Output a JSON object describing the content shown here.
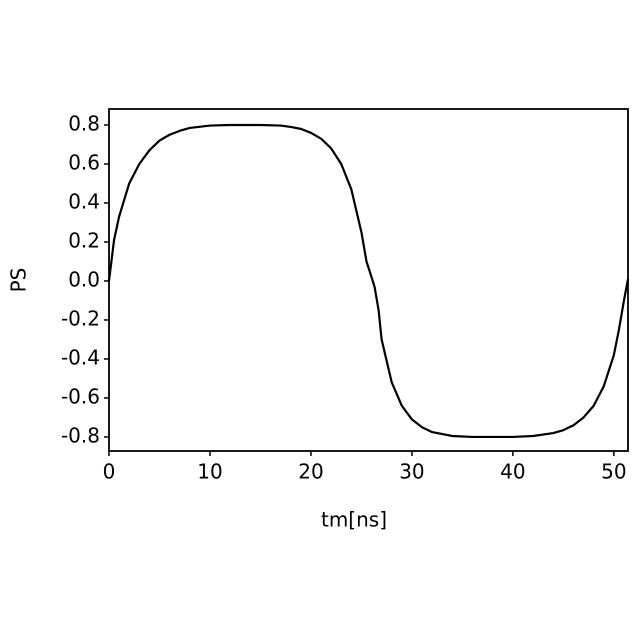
{
  "chart_data": {
    "type": "line",
    "x_label": "tm[ns]",
    "y_label": "PS",
    "x": [
      0,
      0.5,
      1,
      2,
      3,
      4,
      5,
      6,
      7,
      8,
      10,
      12,
      15,
      17,
      18,
      19,
      20,
      21,
      22,
      23,
      24,
      25,
      25.5,
      26,
      26.3,
      26.7,
      27,
      28,
      29,
      30,
      31,
      32,
      34,
      36,
      40,
      42,
      44,
      45,
      46,
      47,
      48,
      49,
      50,
      50.5,
      51,
      51.4
    ],
    "series": [
      {
        "color": "#000000",
        "values": [
          0,
          0.21,
          0.33,
          0.5,
          0.6,
          0.67,
          0.72,
          0.75,
          0.77,
          0.785,
          0.797,
          0.8,
          0.8,
          0.797,
          0.79,
          0.78,
          0.76,
          0.73,
          0.68,
          0.6,
          0.47,
          0.25,
          0.1,
          0.02,
          -0.03,
          -0.15,
          -0.3,
          -0.52,
          -0.64,
          -0.71,
          -0.75,
          -0.775,
          -0.795,
          -0.8,
          -0.8,
          -0.795,
          -0.78,
          -0.765,
          -0.74,
          -0.7,
          -0.64,
          -0.54,
          -0.38,
          -0.25,
          -0.1,
          0.01
        ]
      }
    ],
    "xlim": [
      0,
      51.4
    ],
    "xticks": [
      0,
      10,
      20,
      30,
      40,
      50
    ],
    "ylim": [
      -0.872,
      0.882
    ],
    "yticks": [
      -0.8,
      -0.6,
      -0.4,
      -0.2,
      {
        "value": 0,
        "label": "0.0"
      },
      0.2,
      0.4,
      0.6,
      0.8
    ],
    "grid": false
  }
}
